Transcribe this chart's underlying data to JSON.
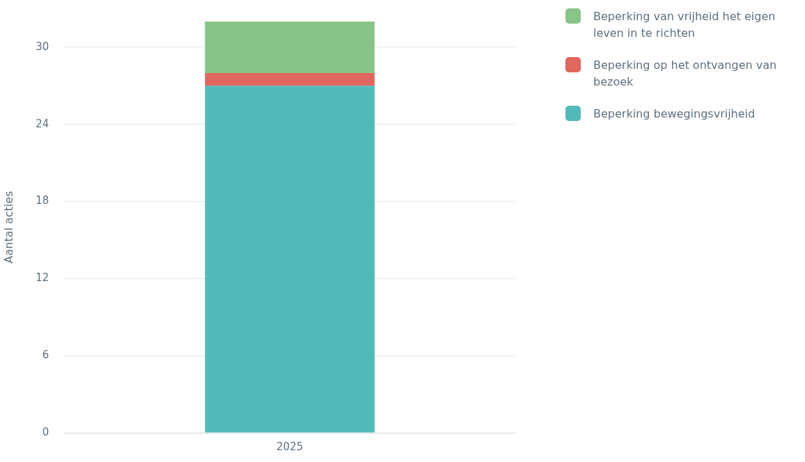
{
  "chart_data": {
    "type": "bar",
    "ylabel": "Aantal acties",
    "categories": [
      "2025"
    ],
    "stacked": true,
    "series": [
      {
        "name": "Beperking bewegingsvrijheid",
        "color": "#53baba",
        "values": [
          27
        ]
      },
      {
        "name": "Beperking op het ontvangen van bezoek",
        "color": "#e0665e",
        "values": [
          1
        ]
      },
      {
        "name": "Beperking van vrijheid het eigen leven in te richten",
        "color": "#88c488",
        "values": [
          4
        ]
      }
    ],
    "ylim": [
      0,
      32
    ],
    "yticks": [
      0,
      6,
      12,
      18,
      24,
      30
    ],
    "grid": "y",
    "legend": "right"
  }
}
